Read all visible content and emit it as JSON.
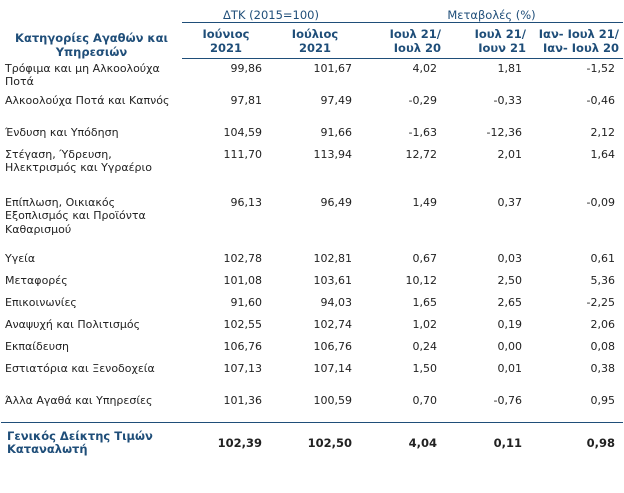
{
  "header": {
    "category_label": "Κατηγορίες Αγαθών και Υπηρεσιών",
    "dtk_group": "ΔΤΚ (2015=100)",
    "changes_group": "Μεταβολές (%)",
    "columns": [
      "Ιούνιος 2021",
      "Ιούλιος 2021",
      "Ιουλ 21/ Ιουλ 20",
      "Ιουλ 21/ Ιουν 21",
      "Ιαν- Ιουλ 21/ Ιαν- Ιουλ 20"
    ]
  },
  "rows": [
    {
      "category": "Τρόφιμα και μη Αλκοολούχα Ποτά",
      "values": [
        "99,86",
        "101,67",
        "4,02",
        "1,81",
        "-1,52"
      ]
    },
    {
      "category": "Αλκοολούχα Ποτά και Καπνός",
      "values": [
        "97,81",
        "97,49",
        "-0,29",
        "-0,33",
        "-0,46"
      ]
    },
    {
      "category": "Ένδυση και Υπόδηση",
      "values": [
        "104,59",
        "91,66",
        "-1,63",
        "-12,36",
        "2,12"
      ]
    },
    {
      "category": "Στέγαση, Ύδρευση, Ηλεκτρισμός και Υγραέριο",
      "values": [
        "111,70",
        "113,94",
        "12,72",
        "2,01",
        "1,64"
      ]
    },
    {
      "category": "Επίπλωση, Οικιακός Εξοπλισμός και Προϊόντα Καθαρισμού",
      "values": [
        "96,13",
        "96,49",
        "1,49",
        "0,37",
        "-0,09"
      ]
    },
    {
      "category": "Υγεία",
      "values": [
        "102,78",
        "102,81",
        "0,67",
        "0,03",
        "0,61"
      ]
    },
    {
      "category": "Μεταφορές",
      "values": [
        "101,08",
        "103,61",
        "10,12",
        "2,50",
        "5,36"
      ]
    },
    {
      "category": "Επικοινωνίες",
      "values": [
        "91,60",
        "94,03",
        "1,65",
        "2,65",
        "-2,25"
      ]
    },
    {
      "category": "Αναψυχή και Πολιτισμός",
      "values": [
        "102,55",
        "102,74",
        "1,02",
        "0,19",
        "2,06"
      ]
    },
    {
      "category": "Εκπαίδευση",
      "values": [
        "106,76",
        "106,76",
        "0,24",
        "0,00",
        "0,08"
      ]
    },
    {
      "category": "Εστιατόρια και Ξενοδοχεία",
      "values": [
        "107,13",
        "107,14",
        "1,50",
        "0,01",
        "0,38"
      ]
    },
    {
      "category": "Άλλα Αγαθά και Υπηρεσίες",
      "values": [
        "101,36",
        "100,59",
        "0,70",
        "-0,76",
        "0,95"
      ]
    }
  ],
  "total": {
    "category": "Γενικός Δείκτης Τιμών Καταναλωτή",
    "values": [
      "102,39",
      "102,50",
      "4,04",
      "0,11",
      "0,98"
    ]
  },
  "colors": {
    "header_text": "#1f4e79",
    "rule": "#1f4e79"
  }
}
